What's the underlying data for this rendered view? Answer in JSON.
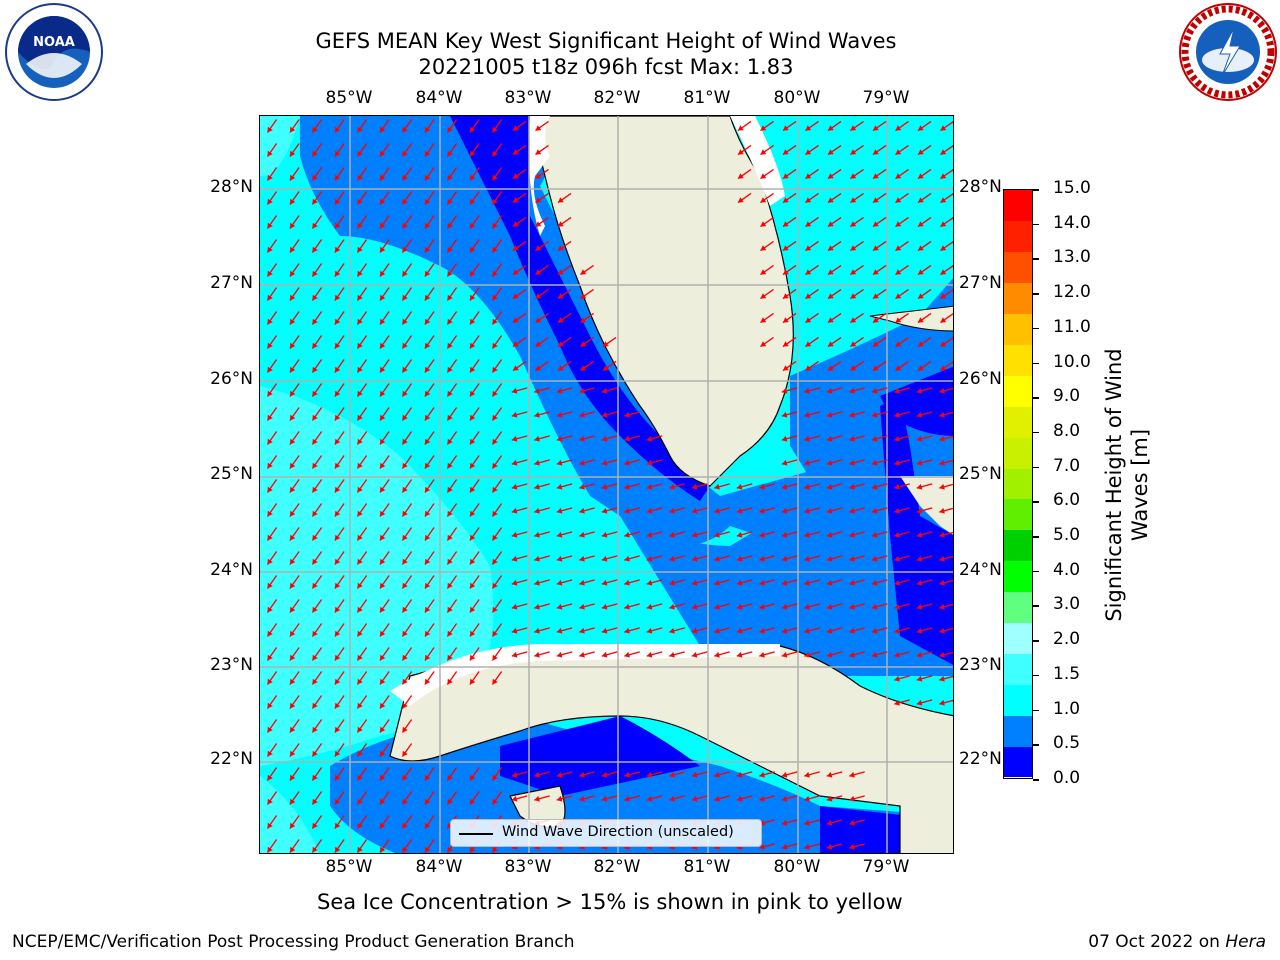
{
  "title_line1": "GEFS MEAN Key West Significant Height of Wind Waves",
  "title_line2": "20221005 t18z 096h fcst   Max: 1.83",
  "logos": {
    "left": "NOAA",
    "right": "NATIONAL WEATHER SERVICE"
  },
  "lon_ticks": [
    "85°W",
    "84°W",
    "83°W",
    "82°W",
    "81°W",
    "80°W",
    "79°W"
  ],
  "lat_ticks": [
    "28°N",
    "27°N",
    "26°N",
    "25°N",
    "24°N",
    "23°N",
    "22°N"
  ],
  "colorbar": {
    "title": "Significant Height of Wind Waves [m]",
    "labels": [
      "15.0",
      "14.0",
      "13.0",
      "12.0",
      "11.0",
      "10.0",
      "9.0",
      "8.0",
      "7.0",
      "6.0",
      "5.0",
      "4.0",
      "3.0",
      "2.0",
      "1.5",
      "1.0",
      "0.5",
      "0.0"
    ],
    "colors_bottom_to_top": [
      "#0000ff",
      "#0080ff",
      "#00ffff",
      "#40ffff",
      "#a0ffff",
      "#60ff80",
      "#00ff00",
      "#00d000",
      "#60ef00",
      "#a0f000",
      "#c8f000",
      "#e0f000",
      "#ffff00",
      "#ffe000",
      "#ffc000",
      "#ff8c00",
      "#ff5000",
      "#ff2000",
      "#ff0000"
    ]
  },
  "legend_label": "Wind Wave Direction (unscaled)",
  "note": "Sea Ice Concentration > 15% is shown in pink to yellow",
  "credit": "NCEP/EMC/Verification Post Processing Product Generation Branch",
  "date_text": "07 Oct 2022 on ",
  "host": "Hera",
  "colors": {
    "land": "#eeeedc",
    "arrow": "#ff0000",
    "grid": "#b0b0b0"
  }
}
